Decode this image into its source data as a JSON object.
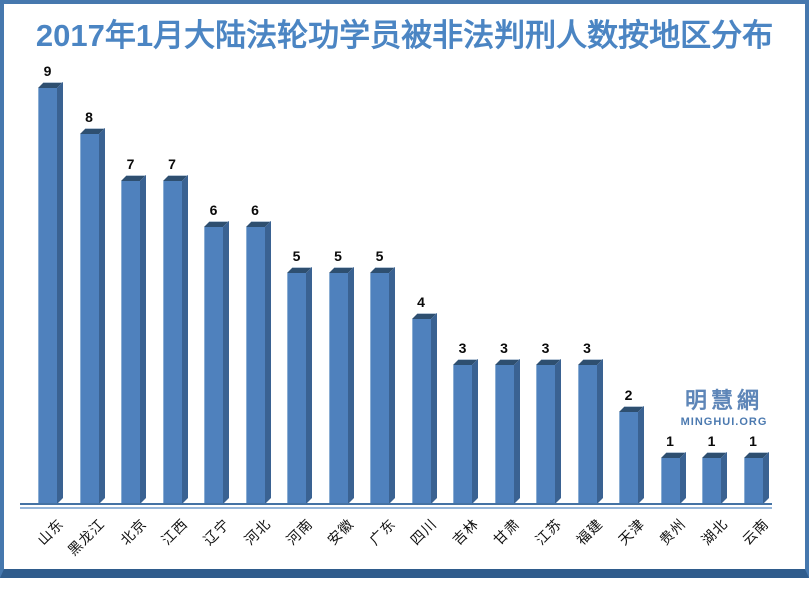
{
  "title": "2017年1月大陆法轮功学员被非法判刑人数按地区分布",
  "watermark": {
    "cjk": "明慧網",
    "latin": "MINGHUI.ORG"
  },
  "chart_data": {
    "type": "bar",
    "title": "2017年1月大陆法轮功学员被非法判刑人数按地区分布",
    "categories": [
      "山东",
      "黑龙江",
      "北京",
      "江西",
      "辽宁",
      "河北",
      "河南",
      "安徽",
      "广东",
      "四川",
      "吉林",
      "甘肃",
      "江苏",
      "福建",
      "天津",
      "贵州",
      "湖北",
      "云南"
    ],
    "values": [
      9,
      8,
      7,
      7,
      6,
      6,
      5,
      5,
      5,
      4,
      3,
      3,
      3,
      3,
      2,
      1,
      1,
      1
    ],
    "xlabel": "",
    "ylabel": "",
    "ylim": [
      0,
      9.5
    ],
    "grid": false,
    "legend": null,
    "y_axis_visible": false,
    "x_tick_rotation": 45,
    "bar_style": "3d",
    "value_labels_shown": true,
    "colors": {
      "bar_front": "#4f81bd",
      "bar_side": "#3a6292",
      "bar_top": "#2e4f70",
      "axis_line_dark": "#4472a4",
      "axis_line_light": "#96b6da",
      "title": "#4b85c3",
      "value_label": "#0a0a0a",
      "category_label": "#111111",
      "watermark": "#5e86b8",
      "frame_border": "#4678ae",
      "frame_border_bottom": "#2f5c8c"
    }
  }
}
